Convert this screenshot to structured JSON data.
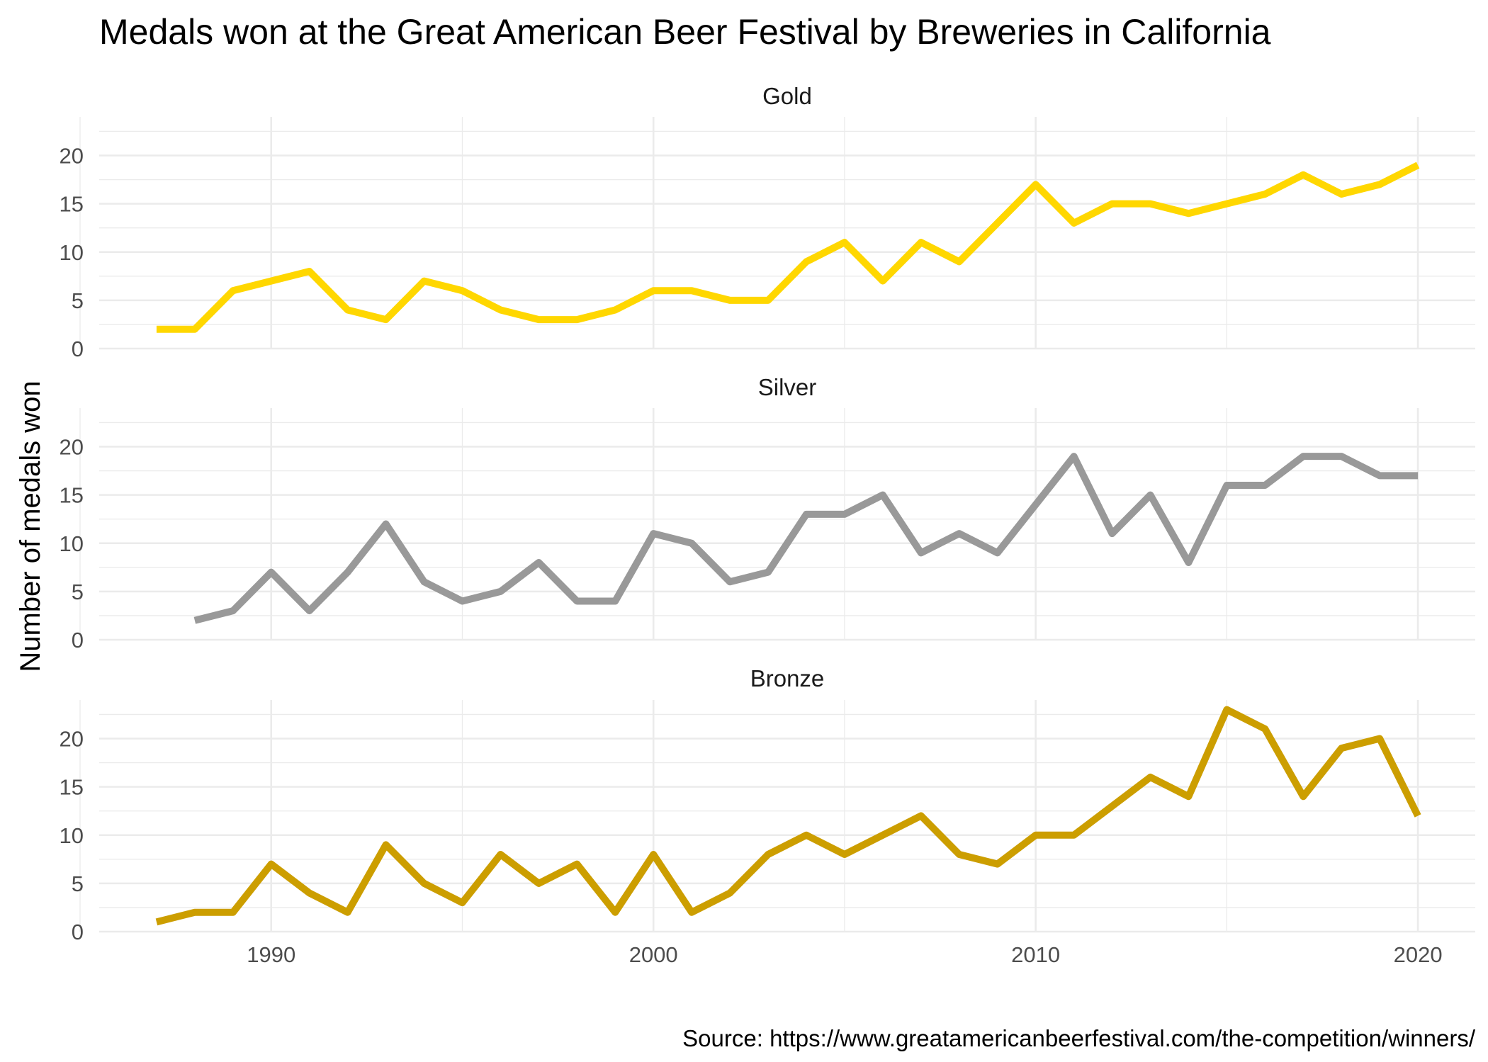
{
  "chart_data": {
    "type": "line",
    "title": "Medals won at the Great American Beer Festival by Breweries in California",
    "ylabel": "Number of medals won",
    "xlabel": "",
    "caption": "Source: https://www.greatamericanbeerfestival.com/the-competition/winners/",
    "xlim": [
      1985.5,
      2021.5
    ],
    "ylim": [
      0,
      24
    ],
    "x_ticks": [
      "1990",
      "2000",
      "2010",
      "2020"
    ],
    "y_ticks": [
      "0",
      "5",
      "10",
      "15",
      "20"
    ],
    "grid": true,
    "panels": [
      {
        "strip": "Gold",
        "color": "#FFD700",
        "x": [
          1987,
          1988,
          1989,
          1990,
          1991,
          1992,
          1993,
          1994,
          1995,
          1996,
          1997,
          1998,
          1999,
          2000,
          2001,
          2002,
          2003,
          2004,
          2005,
          2006,
          2007,
          2008,
          2009,
          2010,
          2011,
          2012,
          2013,
          2014,
          2015,
          2016,
          2017,
          2018,
          2019,
          2020
        ],
        "values": [
          2,
          2,
          6,
          7,
          8,
          4,
          3,
          7,
          6,
          4,
          3,
          3,
          4,
          6,
          6,
          5,
          5,
          9,
          11,
          7,
          11,
          9,
          13,
          17,
          13,
          15,
          15,
          14,
          15,
          16,
          18,
          16,
          17,
          19
        ]
      },
      {
        "strip": "Silver",
        "color": "#999999",
        "x": [
          1988,
          1989,
          1990,
          1991,
          1992,
          1993,
          1994,
          1995,
          1996,
          1997,
          1998,
          1999,
          2000,
          2001,
          2002,
          2003,
          2004,
          2005,
          2006,
          2007,
          2008,
          2009,
          2010,
          2011,
          2012,
          2013,
          2014,
          2015,
          2016,
          2017,
          2018,
          2019,
          2020
        ],
        "values": [
          2,
          3,
          7,
          3,
          7,
          12,
          6,
          4,
          5,
          8,
          4,
          4,
          11,
          10,
          6,
          7,
          13,
          13,
          15,
          9,
          11,
          9,
          14,
          19,
          11,
          15,
          8,
          16,
          16,
          19,
          19,
          17,
          17
        ]
      },
      {
        "strip": "Bronze",
        "color": "#CC9E00",
        "x": [
          1987,
          1988,
          1989,
          1990,
          1991,
          1992,
          1993,
          1994,
          1995,
          1996,
          1997,
          1998,
          1999,
          2000,
          2001,
          2002,
          2003,
          2004,
          2005,
          2006,
          2007,
          2008,
          2009,
          2010,
          2011,
          2012,
          2013,
          2014,
          2015,
          2016,
          2017,
          2018,
          2019,
          2020
        ],
        "values": [
          1,
          2,
          2,
          7,
          4,
          2,
          9,
          5,
          3,
          8,
          5,
          7,
          2,
          8,
          2,
          4,
          8,
          10,
          8,
          10,
          12,
          8,
          7,
          10,
          10,
          13,
          16,
          14,
          23,
          21,
          14,
          19,
          20,
          12
        ]
      }
    ]
  }
}
